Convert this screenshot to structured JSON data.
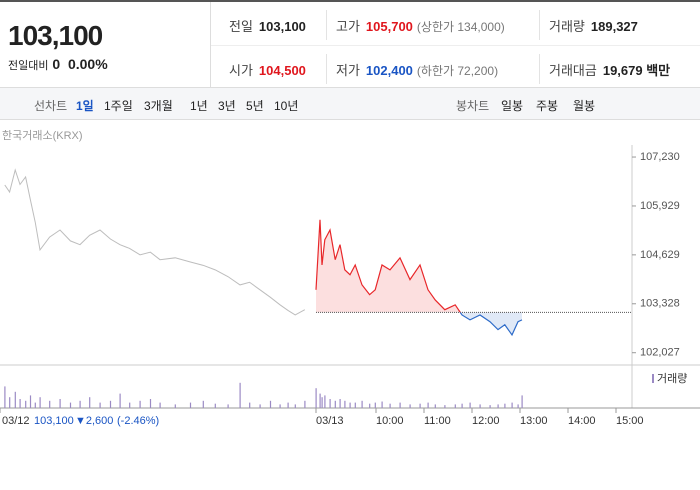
{
  "header": {
    "price": "103,100",
    "change_label": "전일대비",
    "change": "0",
    "change_pct": "0.00%"
  },
  "stats": [
    {
      "label": "전일",
      "value": "103,100",
      "color": "#222"
    },
    {
      "label": "고가",
      "value": "105,700",
      "extra": "(상한가 134,000)",
      "color": "#e0161d"
    },
    {
      "label": "거래량",
      "value": "189,327",
      "color": "#222"
    },
    {
      "label": "시가",
      "value": "104,500",
      "color": "#e0161d"
    },
    {
      "label": "저가",
      "value": "102,400",
      "extra": "(하한가 72,200)",
      "color": "#1a55c4"
    },
    {
      "label": "거래대금",
      "value": "19,679 백만",
      "color": "#222"
    }
  ],
  "tabs": {
    "line_label": "선차트",
    "line_items": [
      "1일",
      "1주일",
      "3개월",
      "1년",
      "3년",
      "5년",
      "10년"
    ],
    "candle_label": "봉차트",
    "candle_items": [
      "일봉",
      "주봉",
      "월봉"
    ]
  },
  "chart_data": {
    "type": "line",
    "source": "한국거래소(KRX)",
    "ylim": [
      101700,
      107550
    ],
    "yticks": [
      {
        "value": 107230,
        "label": "107,230"
      },
      {
        "value": 105929,
        "label": "105,929"
      },
      {
        "value": 104629,
        "label": "104,629"
      },
      {
        "value": 103328,
        "label": "103,328"
      },
      {
        "value": 102027,
        "label": "102,027"
      }
    ],
    "xlim": [
      -410,
      380
    ],
    "xticks": [
      {
        "value": -410,
        "label": "03/12"
      },
      {
        "value": -15,
        "label": "03/13"
      },
      {
        "value": 60,
        "label": "10:00"
      },
      {
        "value": 120,
        "label": "11:00"
      },
      {
        "value": 180,
        "label": "12:00"
      },
      {
        "value": 240,
        "label": "13:00"
      },
      {
        "value": 300,
        "label": "14:00"
      },
      {
        "value": 360,
        "label": "15:00"
      }
    ],
    "baseline": 103100,
    "up_color": "#e8272a",
    "down_color": "#2d6bc9",
    "volume_color": "#9b8ac4",
    "volume_label": "거래량",
    "series": [
      {
        "name": "03/12",
        "color": "#bdbdbd",
        "x": [
          -404,
          -398,
          -391,
          -385,
          -378,
          -372,
          -366,
          -360,
          -348,
          -335,
          -322,
          -310,
          -298,
          -285,
          -272,
          -260,
          -248,
          -235,
          -222,
          -210,
          -191,
          -172,
          -156,
          -141,
          -125,
          -110,
          -98,
          -85,
          -72,
          -60,
          -50,
          -41,
          -29
        ],
        "values": [
          106487,
          106300,
          106885,
          106500,
          106700,
          106090,
          105500,
          104760,
          105100,
          105290,
          105000,
          104900,
          105150,
          105290,
          105050,
          104900,
          104800,
          104630,
          104700,
          104500,
          104550,
          104440,
          104350,
          104230,
          104050,
          103830,
          103900,
          103700,
          103500,
          103300,
          103150,
          103030,
          103170
        ],
        "volume": [
          60,
          30,
          45,
          25,
          20,
          35,
          15,
          30,
          20,
          25,
          15,
          20,
          30,
          15,
          20,
          40,
          15,
          20,
          25,
          15,
          10,
          15,
          20,
          12,
          10,
          70,
          15,
          10,
          20,
          10,
          15,
          10,
          20
        ]
      },
      {
        "name": "03/13",
        "x": [
          -15,
          -10,
          -7.5,
          -4,
          2.5,
          9,
          15,
          21,
          27.5,
          34,
          42.5,
          52,
          59,
          67.5,
          77.5,
          90,
          102.5,
          115,
          125,
          134,
          146,
          159,
          167.5,
          177.5,
          190,
          202.5,
          212.5,
          221,
          230,
          237.5,
          242.5
        ],
        "values": [
          103700,
          105560,
          104360,
          105030,
          105290,
          104500,
          104900,
          104230,
          104100,
          104360,
          103830,
          103570,
          103700,
          104360,
          104230,
          104550,
          103970,
          104360,
          103700,
          103430,
          103170,
          103300,
          103030,
          102900,
          103030,
          102850,
          102640,
          102770,
          102500,
          102850,
          102900
        ],
        "volume": [
          55,
          40,
          30,
          35,
          25,
          20,
          25,
          20,
          15,
          15,
          20,
          12,
          15,
          18,
          12,
          15,
          10,
          12,
          15,
          10,
          8,
          10,
          12,
          15,
          10,
          8,
          10,
          12,
          15,
          10,
          35
        ]
      }
    ],
    "prev_summary": {
      "date": "03/12",
      "close": "103,100",
      "change": "▼2,600",
      "pct": "(-2.46%)"
    }
  }
}
